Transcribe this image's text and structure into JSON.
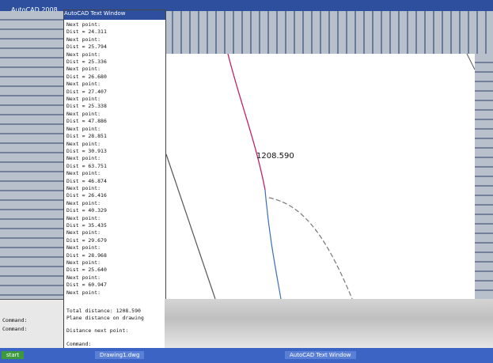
{
  "app": {
    "title": "AutoCAD 2008"
  },
  "text_window": {
    "title": "AutoCAD Text Window",
    "lines": [
      "Next point:",
      "Dist = 24.311",
      "Next point:",
      "Dist = 25.794",
      "Next point:",
      "Dist = 25.336",
      "Next point:",
      "Dist = 26.680",
      "Next point:",
      "Dist = 27.407",
      "Next point:",
      "Dist = 25.338",
      "Next point:",
      "Dist = 47.886",
      "Next point:",
      "Dist = 28.851",
      "Next point:",
      "Dist = 30.913",
      "Next point:",
      "Dist = 63.751",
      "Next point:",
      "Dist = 46.874",
      "Next point:",
      "Dist = 26.416",
      "Next point:",
      "Dist = 40.329",
      "Next point:",
      "Dist = 35.435",
      "Next point:",
      "Dist = 29.679",
      "Next point:",
      "Dist = 28.968",
      "Next point:",
      "Dist = 25.640",
      "Next point:",
      "Dist = 60.947",
      "Next point:"
    ],
    "total": "Total distance: 1208.590",
    "plane": "Plane distance on drawing",
    "prompt": "Distance next point:",
    "command": "Command:"
  },
  "drawing": {
    "label": "1208.590"
  },
  "command_line": {
    "line1": "Command:",
    "line2": "Command:"
  },
  "taskbar": {
    "start": "start",
    "item1": "Drawing1.dwg",
    "item2": "AutoCAD Text Window"
  }
}
